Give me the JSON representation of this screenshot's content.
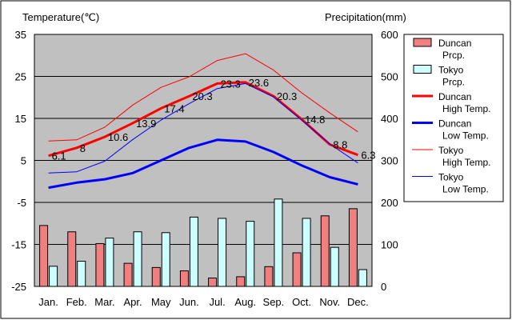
{
  "chart_data": {
    "type": "bar+line",
    "title_left": "Temperature(℃)",
    "title_right": "Precipitation(mm)",
    "categories": [
      "Jan.",
      "Feb.",
      "Mar.",
      "Apr.",
      "May",
      "Jun.",
      "Jul.",
      "Aug.",
      "Sep.",
      "Oct.",
      "Nov.",
      "Dec."
    ],
    "y_left": {
      "min": -25,
      "max": 35,
      "ticks": [
        35,
        25,
        15,
        5,
        -5,
        -15,
        -25
      ]
    },
    "y_right": {
      "min": 0,
      "max": 600,
      "ticks": [
        600,
        500,
        400,
        300,
        200,
        100,
        0
      ]
    },
    "bar_series": [
      {
        "name": "Duncan Prcp.",
        "axis": "right",
        "color": "#f08080",
        "values": [
          145,
          130,
          102,
          55,
          45,
          37,
          20,
          23,
          47,
          80,
          168,
          185
        ]
      },
      {
        "name": "Tokyo Prcp.",
        "axis": "right",
        "color": "#ccffff",
        "values": [
          48,
          60,
          115,
          130,
          128,
          165,
          162,
          155,
          208,
          162,
          93,
          40
        ]
      }
    ],
    "line_series": [
      {
        "name": "Duncan High Temp.",
        "axis": "left",
        "color": "#ff0000",
        "width": 3,
        "values": [
          6.1,
          8,
          10.6,
          13.9,
          17.4,
          20.3,
          23.3,
          23.6,
          20.3,
          14.8,
          8.8,
          6.3
        ],
        "labels": [
          "6.1",
          "8",
          "10.6",
          "13.9",
          "17.4",
          "20.3",
          "23.3",
          "23.6",
          "20.3",
          "14.8",
          "8.8",
          "6.3"
        ]
      },
      {
        "name": "Duncan Low Temp.",
        "axis": "left",
        "color": "#0000ff",
        "width": 3,
        "values": [
          -1.5,
          -0.3,
          0.5,
          2,
          5,
          8,
          9.9,
          9.5,
          7,
          3.8,
          1,
          -0.7
        ]
      },
      {
        "name": "Tokyo High Temp.",
        "axis": "left",
        "color": "#ff0000",
        "width": 1,
        "values": [
          9.6,
          9.9,
          12.9,
          18.2,
          22.4,
          24.9,
          28.8,
          30.4,
          26.5,
          21.1,
          16.3,
          11.8
        ]
      },
      {
        "name": "Tokyo Low Temp.",
        "axis": "left",
        "color": "#0000ff",
        "width": 1,
        "values": [
          2,
          2.3,
          4.8,
          10,
          14.6,
          18.5,
          22.1,
          23.3,
          20.1,
          14.6,
          8.9,
          4.4
        ]
      }
    ],
    "legend": [
      {
        "line1": "Duncan",
        "line2": "Prcp.",
        "kind": "bar",
        "color": "#f08080"
      },
      {
        "line1": "Tokyo",
        "line2": "Prcp.",
        "kind": "bar",
        "color": "#ccffff"
      },
      {
        "line1": "Duncan",
        "line2": "High Temp.",
        "kind": "thick-line",
        "color": "#ff0000"
      },
      {
        "line1": "Duncan",
        "line2": "Low Temp.",
        "kind": "thick-line",
        "color": "#0000ff"
      },
      {
        "line1": "Tokyo",
        "line2": "High Temp.",
        "kind": "thin-line",
        "color": "#ff0000"
      },
      {
        "line1": "Tokyo",
        "line2": "Low Temp.",
        "kind": "thin-line",
        "color": "#0000ff"
      }
    ],
    "colors": {
      "plot_background": "#c0c0c0",
      "grid": "#000000",
      "bar_outline": "#000000"
    }
  }
}
